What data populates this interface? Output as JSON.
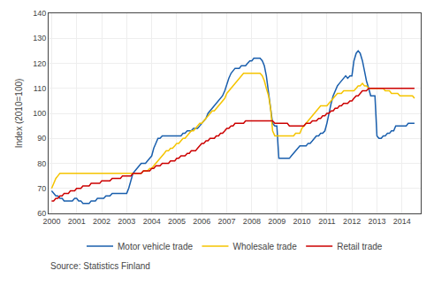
{
  "chart_data": {
    "type": "line",
    "ylabel": "Index (2010=100)",
    "annotation": "Source: Statistics Finland",
    "x": [
      2000.0,
      2000.08,
      2000.17,
      2000.25,
      2000.33,
      2000.42,
      2000.5,
      2000.58,
      2000.67,
      2000.75,
      2000.83,
      2000.92,
      2001.0,
      2001.08,
      2001.17,
      2001.25,
      2001.33,
      2001.42,
      2001.5,
      2001.58,
      2001.67,
      2001.75,
      2001.83,
      2001.92,
      2002.0,
      2002.08,
      2002.17,
      2002.25,
      2002.33,
      2002.42,
      2002.5,
      2002.58,
      2002.67,
      2002.75,
      2002.83,
      2002.92,
      2003.0,
      2003.08,
      2003.17,
      2003.25,
      2003.33,
      2003.42,
      2003.5,
      2003.58,
      2003.67,
      2003.75,
      2003.83,
      2003.92,
      2004.0,
      2004.08,
      2004.17,
      2004.25,
      2004.33,
      2004.42,
      2004.5,
      2004.58,
      2004.67,
      2004.75,
      2004.83,
      2004.92,
      2005.0,
      2005.08,
      2005.17,
      2005.25,
      2005.33,
      2005.42,
      2005.5,
      2005.58,
      2005.67,
      2005.75,
      2005.83,
      2005.92,
      2006.0,
      2006.08,
      2006.17,
      2006.25,
      2006.33,
      2006.42,
      2006.5,
      2006.58,
      2006.67,
      2006.75,
      2006.83,
      2006.92,
      2007.0,
      2007.08,
      2007.17,
      2007.25,
      2007.33,
      2007.42,
      2007.5,
      2007.58,
      2007.67,
      2007.75,
      2007.83,
      2007.92,
      2008.0,
      2008.08,
      2008.17,
      2008.25,
      2008.33,
      2008.42,
      2008.5,
      2008.58,
      2008.67,
      2008.75,
      2008.83,
      2008.92,
      2009.0,
      2009.08,
      2009.17,
      2009.25,
      2009.33,
      2009.42,
      2009.5,
      2009.58,
      2009.67,
      2009.75,
      2009.83,
      2009.92,
      2010.0,
      2010.08,
      2010.17,
      2010.25,
      2010.33,
      2010.42,
      2010.5,
      2010.58,
      2010.67,
      2010.75,
      2010.83,
      2010.92,
      2011.0,
      2011.08,
      2011.17,
      2011.25,
      2011.33,
      2011.42,
      2011.5,
      2011.58,
      2011.67,
      2011.75,
      2011.83,
      2011.92,
      2012.0,
      2012.08,
      2012.17,
      2012.25,
      2012.33,
      2012.42,
      2012.5,
      2012.58,
      2012.67,
      2012.75,
      2012.83,
      2012.92,
      2013.0,
      2013.08,
      2013.17,
      2013.25,
      2013.33,
      2013.42,
      2013.5,
      2013.58,
      2013.67,
      2013.75,
      2013.83,
      2013.92,
      2014.0,
      2014.08,
      2014.17,
      2014.25,
      2014.33,
      2014.42,
      2014.5
    ],
    "series": [
      {
        "name": "Motor vehicle trade",
        "color": "#1a5fad",
        "values": [
          69,
          68,
          67,
          67,
          66,
          66,
          65,
          65,
          65,
          65,
          65,
          66,
          66,
          65,
          65,
          64,
          64,
          64,
          64,
          65,
          65,
          65,
          66,
          66,
          66,
          66,
          67,
          67,
          67,
          68,
          68,
          68,
          68,
          68,
          68,
          68,
          68,
          70,
          73,
          76,
          77,
          78,
          79,
          80,
          80,
          80,
          81,
          82,
          83,
          86,
          88,
          90,
          90,
          91,
          91,
          91,
          91,
          91,
          91,
          91,
          91,
          91,
          91,
          92,
          92,
          93,
          93,
          93,
          94,
          94,
          94,
          95,
          96,
          97,
          98,
          100,
          101,
          102,
          103,
          104,
          105,
          106,
          107,
          109,
          112,
          114,
          116,
          117,
          118,
          118,
          118,
          119,
          119,
          119,
          120,
          121,
          121,
          122,
          122,
          122,
          122,
          121,
          119,
          115,
          108,
          101,
          96,
          95,
          95,
          82,
          82,
          82,
          82,
          82,
          82,
          83,
          84,
          85,
          86,
          87,
          87,
          87,
          87,
          88,
          88,
          89,
          90,
          91,
          91,
          92,
          92,
          93,
          96,
          100,
          104,
          107,
          109,
          111,
          112,
          113,
          114,
          115,
          114,
          115,
          115,
          121,
          124,
          125,
          124,
          121,
          117,
          113,
          110,
          107,
          107,
          107,
          91,
          90,
          90,
          91,
          91,
          92,
          92,
          93,
          93,
          95,
          95,
          95,
          95,
          95,
          95,
          96,
          96,
          96,
          96
        ]
      },
      {
        "name": "Wholesale trade",
        "color": "#f5c400",
        "values": [
          70,
          72,
          74,
          75,
          76,
          76,
          76,
          76,
          76,
          76,
          76,
          76,
          76,
          76,
          76,
          76,
          76,
          76,
          76,
          76,
          76,
          76,
          76,
          76,
          76,
          76,
          76,
          76,
          76,
          76,
          76,
          76,
          76,
          76,
          76,
          76,
          76,
          76,
          76,
          76,
          76,
          76,
          76,
          76,
          77,
          77,
          77,
          78,
          78,
          79,
          80,
          81,
          82,
          83,
          84,
          85,
          85,
          86,
          86,
          87,
          88,
          88,
          89,
          90,
          90,
          91,
          92,
          93,
          93,
          94,
          95,
          96,
          96,
          97,
          98,
          99,
          100,
          101,
          101,
          102,
          103,
          104,
          105,
          106,
          108,
          109,
          110,
          111,
          112,
          113,
          114,
          115,
          116,
          116,
          116,
          116,
          116,
          116,
          116,
          116,
          116,
          115,
          113,
          110,
          107,
          102,
          93,
          91,
          91,
          91,
          91,
          91,
          91,
          91,
          91,
          91,
          91,
          92,
          92,
          92,
          94,
          95,
          96,
          97,
          98,
          99,
          100,
          101,
          102,
          103,
          103,
          103,
          103,
          104,
          105,
          106,
          107,
          108,
          108,
          108,
          109,
          109,
          109,
          109,
          109,
          109,
          110,
          111,
          111,
          112,
          111,
          111,
          110,
          110,
          110,
          110,
          110,
          110,
          110,
          110,
          109,
          109,
          109,
          108,
          108,
          108,
          108,
          107,
          107,
          107,
          107,
          107,
          107,
          107,
          106
        ]
      },
      {
        "name": "Retail trade",
        "color": "#cc0000",
        "values": [
          65,
          65,
          66,
          66,
          67,
          67,
          68,
          68,
          68,
          69,
          69,
          69,
          70,
          70,
          70,
          71,
          71,
          71,
          71,
          72,
          72,
          72,
          72,
          72,
          73,
          73,
          73,
          73,
          73,
          74,
          74,
          74,
          74,
          74,
          75,
          75,
          75,
          75,
          75,
          76,
          76,
          76,
          76,
          76,
          77,
          77,
          77,
          77,
          78,
          78,
          79,
          79,
          79,
          80,
          80,
          80,
          80,
          81,
          81,
          81,
          82,
          82,
          83,
          83,
          83,
          84,
          84,
          85,
          85,
          85,
          86,
          87,
          88,
          88,
          89,
          89,
          90,
          90,
          90,
          91,
          91,
          92,
          92,
          93,
          94,
          94,
          95,
          95,
          96,
          96,
          96,
          96,
          96,
          97,
          97,
          97,
          97,
          97,
          97,
          97,
          97,
          97,
          97,
          97,
          97,
          97,
          97,
          96,
          96,
          96,
          96,
          96,
          96,
          96,
          95,
          95,
          95,
          95,
          95,
          95,
          95,
          95,
          96,
          96,
          96,
          97,
          97,
          97,
          98,
          98,
          99,
          99,
          100,
          100,
          101,
          101,
          102,
          102,
          103,
          103,
          104,
          104,
          104,
          105,
          105,
          106,
          107,
          107,
          108,
          109,
          109,
          109,
          110,
          110,
          110,
          110,
          110,
          110,
          110,
          110,
          110,
          110,
          110,
          110,
          110,
          110,
          110,
          110,
          110,
          110,
          110,
          110,
          110,
          110,
          110
        ]
      }
    ],
    "xlim": [
      1999.88,
      2014.75
    ],
    "xticks": [
      2000,
      2001,
      2002,
      2003,
      2004,
      2005,
      2006,
      2007,
      2008,
      2009,
      2010,
      2011,
      2012,
      2013,
      2014
    ],
    "ylim": [
      60,
      140
    ],
    "yticks": [
      60,
      70,
      80,
      90,
      100,
      110,
      120,
      130,
      140
    ],
    "grid": true,
    "legend": "bottom"
  }
}
